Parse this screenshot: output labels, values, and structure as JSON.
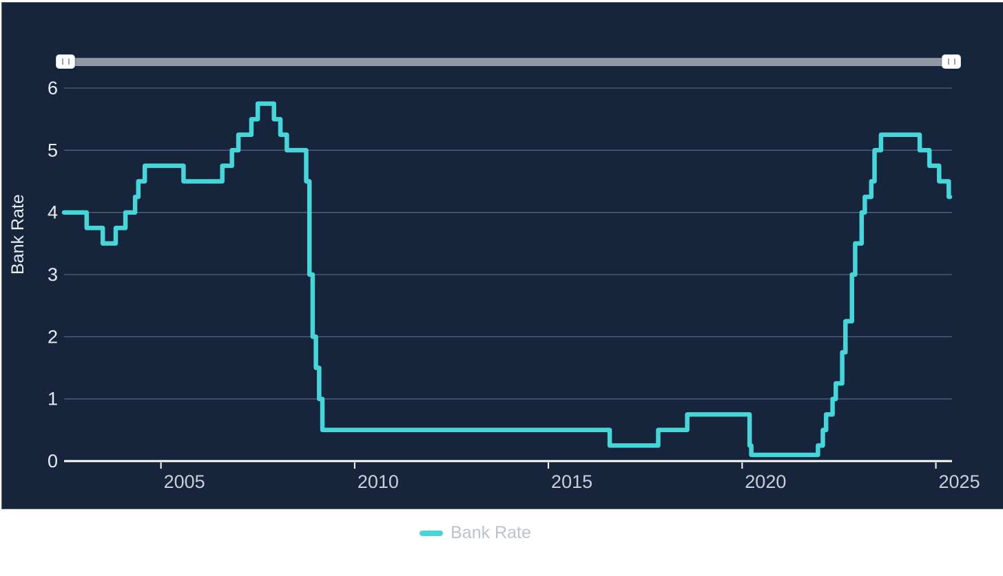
{
  "theme": {
    "page_background": "#ffffff",
    "card_background": "#16243c",
    "card_border": "#5a6378",
    "gridline_color": "#56617a",
    "axis_color": "#ffffff",
    "y_tick_label_color": "#e9ecf1",
    "x_tick_label_color": "#c9d0da",
    "legend_text_color": "#bdc3cc",
    "slider_track_color": "#9098a4",
    "slider_handle_color": "#ffffff"
  },
  "slider": {
    "kind": "time-range-slider",
    "left_handle_icon": "drag-grip-icon",
    "right_handle_icon": "drag-grip-icon",
    "position": "top"
  },
  "chart_data": {
    "type": "line",
    "subtype": "step-after",
    "title": "",
    "xlabel": "",
    "ylabel": "Bank Rate",
    "grid": true,
    "legend_position": "bottom-center",
    "ylim": [
      0,
      6.5
    ],
    "yticks": [
      0,
      1,
      2,
      3,
      4,
      5,
      6
    ],
    "xlim": [
      "2002-07",
      "2025-06"
    ],
    "xticks": [
      2005,
      2010,
      2015,
      2020,
      2025
    ],
    "series": [
      {
        "name": "Bank Rate",
        "color": "#45d6da",
        "points": [
          [
            "2002-07",
            4.0
          ],
          [
            "2003-02",
            3.75
          ],
          [
            "2003-07",
            3.5
          ],
          [
            "2003-11",
            3.75
          ],
          [
            "2004-02",
            4.0
          ],
          [
            "2004-05",
            4.25
          ],
          [
            "2004-06",
            4.5
          ],
          [
            "2004-08",
            4.75
          ],
          [
            "2005-08",
            4.5
          ],
          [
            "2006-08",
            4.75
          ],
          [
            "2006-11",
            5.0
          ],
          [
            "2007-01",
            5.25
          ],
          [
            "2007-05",
            5.5
          ],
          [
            "2007-07",
            5.75
          ],
          [
            "2007-12",
            5.5
          ],
          [
            "2008-02",
            5.25
          ],
          [
            "2008-04",
            5.0
          ],
          [
            "2008-10",
            4.5
          ],
          [
            "2008-11",
            3.0
          ],
          [
            "2008-12",
            2.0
          ],
          [
            "2009-01",
            1.5
          ],
          [
            "2009-02",
            1.0
          ],
          [
            "2009-03",
            0.5
          ],
          [
            "2016-08",
            0.25
          ],
          [
            "2017-11",
            0.5
          ],
          [
            "2018-08",
            0.75
          ],
          [
            "2020-03-11",
            0.25
          ],
          [
            "2020-03-26",
            0.1
          ],
          [
            "2021-12-16",
            0.25
          ],
          [
            "2022-02",
            0.5
          ],
          [
            "2022-03",
            0.75
          ],
          [
            "2022-05",
            1.0
          ],
          [
            "2022-06",
            1.25
          ],
          [
            "2022-08",
            1.75
          ],
          [
            "2022-09",
            2.25
          ],
          [
            "2022-11",
            3.0
          ],
          [
            "2022-12",
            3.5
          ],
          [
            "2023-02",
            4.0
          ],
          [
            "2023-03",
            4.25
          ],
          [
            "2023-05",
            4.5
          ],
          [
            "2023-06",
            5.0
          ],
          [
            "2023-08",
            5.25
          ],
          [
            "2024-08",
            5.0
          ],
          [
            "2024-11",
            4.75
          ],
          [
            "2025-02",
            4.5
          ],
          [
            "2025-05",
            4.25
          ]
        ]
      }
    ]
  }
}
